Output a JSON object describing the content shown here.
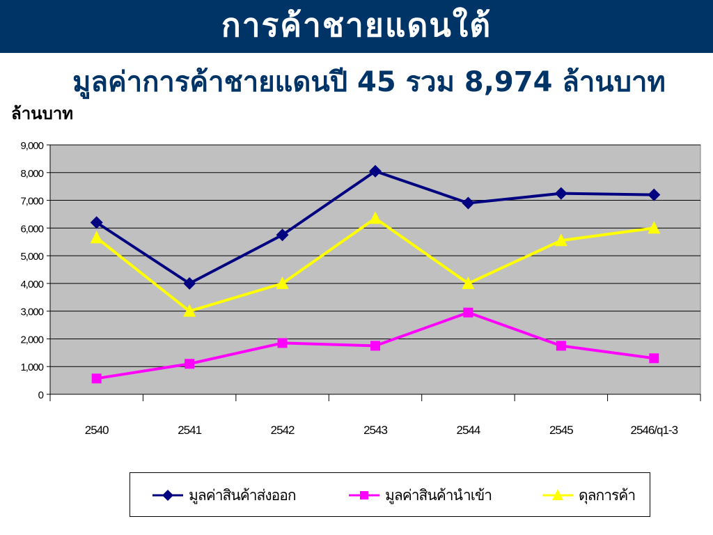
{
  "header": {
    "title": "การค้าชายแดนใต้",
    "subtitle": "มูลค่าการค้าชายแดนปี 45 รวม 8,974 ล้านบาท"
  },
  "colors": {
    "header_bg": "#003467",
    "plot_bg": "#C0C0C0",
    "export_series": "#000080",
    "import_series": "#FF00FF",
    "balance_series": "#FFFF00"
  },
  "chart_data": {
    "type": "line",
    "title": "",
    "ylabel": "ล้านบาท",
    "xlabel": "",
    "categories": [
      "2540",
      "2541",
      "2542",
      "2543",
      "2544",
      "2545",
      "2546/q1-3"
    ],
    "ylim": [
      0,
      9000
    ],
    "yticks": [
      0,
      1000,
      2000,
      3000,
      4000,
      5000,
      6000,
      7000,
      8000,
      9000
    ],
    "ytick_labels": [
      "0",
      "1,000",
      "2,000",
      "3,000",
      "4,000",
      "5,000",
      "6,000",
      "7,000",
      "8,000",
      "9,000"
    ],
    "grid": true,
    "legend_position": "bottom",
    "series": [
      {
        "name": "มูลค่าสินค้าส่งออก",
        "marker": "diamond",
        "color": "#000080",
        "values": [
          6200,
          4000,
          5750,
          8050,
          6900,
          7250,
          7200
        ]
      },
      {
        "name": "มูลค่าสินค้านำเข้า",
        "marker": "square",
        "color": "#FF00FF",
        "values": [
          570,
          1100,
          1850,
          1750,
          2950,
          1750,
          1300
        ]
      },
      {
        "name": "ดุลการค้า",
        "marker": "triangle",
        "color": "#FFFF00",
        "values": [
          5650,
          3000,
          4000,
          6350,
          4000,
          5550,
          6000
        ]
      }
    ]
  }
}
